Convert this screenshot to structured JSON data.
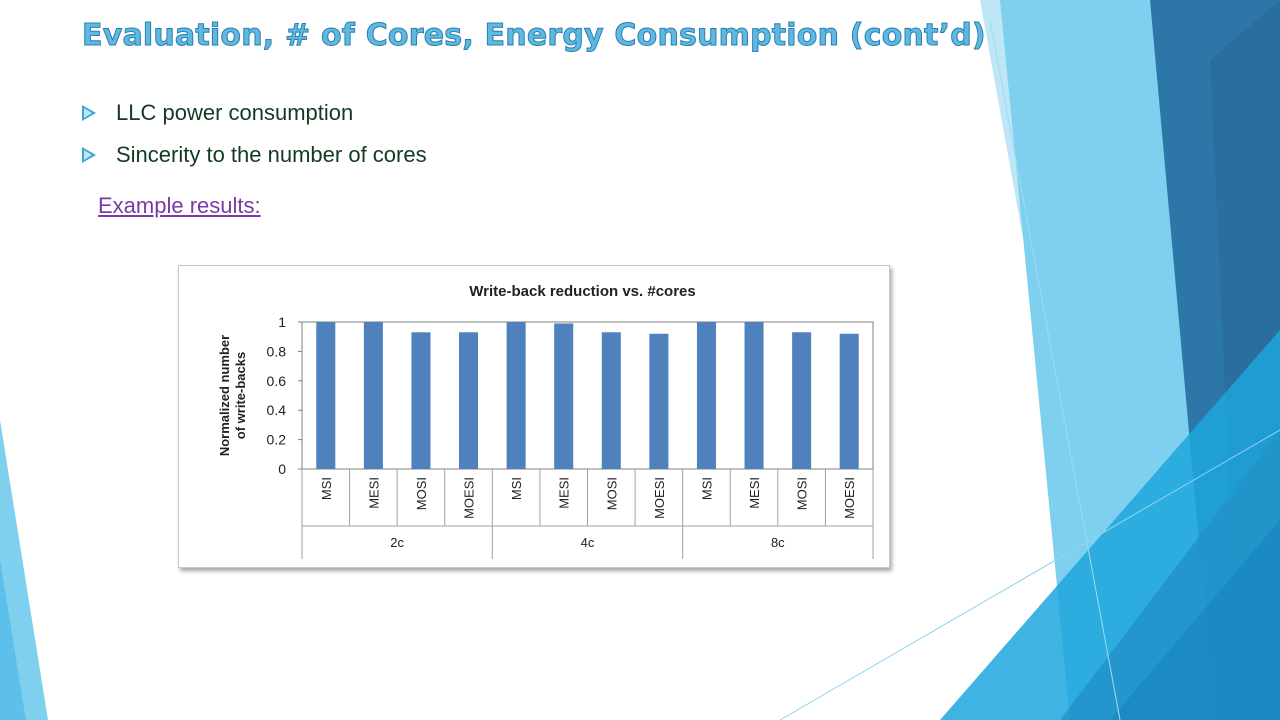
{
  "slide": {
    "title": "Evaluation, # of Cores, Energy Consumption (cont’d)",
    "bullets": [
      "LLC power consumption",
      "Sincerity to the number of cores"
    ],
    "example_label": "Example results:"
  },
  "theme": {
    "bar_color": "#4f81bd",
    "accent": "#3aa6d6",
    "title_color": "#5fb8e0"
  },
  "chart_data": {
    "type": "bar",
    "title": "Write-back reduction vs. #cores",
    "ylabel": [
      "Normalized number",
      "of write-backs"
    ],
    "xlabel": "",
    "ylim": [
      0,
      1
    ],
    "yticks": [
      0,
      0.2,
      0.4,
      0.6,
      0.8,
      1
    ],
    "grid": false,
    "legend": "none",
    "groups": [
      {
        "label": "2c",
        "categories": [
          "MSI",
          "MESI",
          "MOSI",
          "MOESI"
        ],
        "values": [
          1.0,
          1.0,
          0.93,
          0.93
        ]
      },
      {
        "label": "4c",
        "categories": [
          "MSI",
          "MESI",
          "MOSI",
          "MOESI"
        ],
        "values": [
          1.0,
          0.99,
          0.93,
          0.92
        ]
      },
      {
        "label": "8c",
        "categories": [
          "MSI",
          "MESI",
          "MOSI",
          "MOESI"
        ],
        "values": [
          1.0,
          1.0,
          0.93,
          0.92
        ]
      }
    ]
  }
}
